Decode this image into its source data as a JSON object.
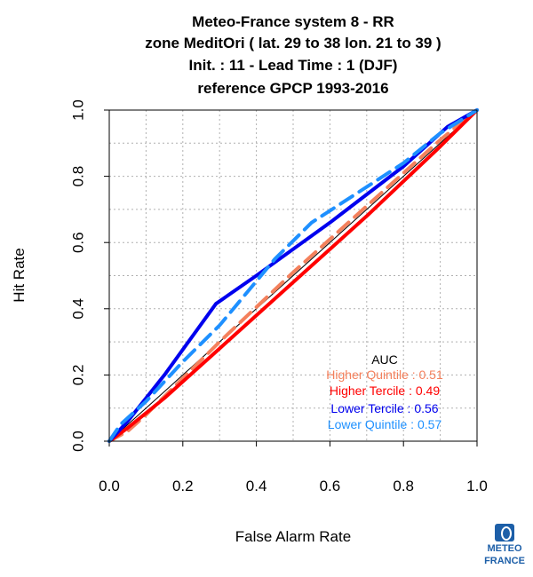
{
  "title_lines": [
    "Meteo-France system 8  -  RR",
    "zone MeditOri ( lat. 29 to 38    lon. 21 to 39 )",
    "Init. : 11  - Lead Time : 1 (DJF)",
    "reference GPCP 1993-2016"
  ],
  "chart_data": {
    "type": "line",
    "xlabel": "False Alarm Rate",
    "ylabel": "Hit Rate",
    "xlim": [
      0,
      1
    ],
    "ylim": [
      0,
      1
    ],
    "grid": true,
    "x_ticks": [
      "0.0",
      "0.2",
      "0.4",
      "0.6",
      "0.8",
      "1.0"
    ],
    "y_ticks": [
      "0.0",
      "0.2",
      "0.4",
      "0.6",
      "0.8",
      "1.0"
    ],
    "diagonal": [
      [
        0,
        0
      ],
      [
        1,
        1
      ]
    ],
    "legend_title": "AUC",
    "legend_position": "bottom-right",
    "series": [
      {
        "name": "Higher Quintile : 0.51",
        "color": "#f4805c",
        "dashed": true,
        "points": [
          [
            0,
            0
          ],
          [
            0.05,
            0.03
          ],
          [
            0.1,
            0.08
          ],
          [
            0.2,
            0.19
          ],
          [
            0.3,
            0.3
          ],
          [
            0.5,
            0.51
          ],
          [
            0.7,
            0.71
          ],
          [
            0.9,
            0.91
          ],
          [
            1,
            1
          ]
        ]
      },
      {
        "name": "Higher Tercile : 0.49",
        "color": "#ff0000",
        "dashed": false,
        "points": [
          [
            0,
            0
          ],
          [
            0.05,
            0.04
          ],
          [
            0.15,
            0.13
          ],
          [
            0.3,
            0.28
          ],
          [
            0.5,
            0.48
          ],
          [
            0.7,
            0.68
          ],
          [
            0.9,
            0.89
          ],
          [
            1,
            1
          ]
        ]
      },
      {
        "name": "Lower Tercile : 0.56",
        "color": "#0000ee",
        "dashed": false,
        "points": [
          [
            0,
            0
          ],
          [
            0.05,
            0.06
          ],
          [
            0.15,
            0.2
          ],
          [
            0.29,
            0.415
          ],
          [
            0.4,
            0.5
          ],
          [
            0.6,
            0.66
          ],
          [
            0.8,
            0.83
          ],
          [
            0.92,
            0.95
          ],
          [
            1,
            1
          ]
        ]
      },
      {
        "name": "Lower Quintile : 0.57",
        "color": "#1e90ff",
        "dashed": true,
        "points": [
          [
            0,
            0
          ],
          [
            0.03,
            0.05
          ],
          [
            0.1,
            0.12
          ],
          [
            0.2,
            0.24
          ],
          [
            0.3,
            0.35
          ],
          [
            0.45,
            0.55
          ],
          [
            0.55,
            0.66
          ],
          [
            0.8,
            0.84
          ],
          [
            0.9,
            0.93
          ],
          [
            1,
            1
          ]
        ]
      }
    ]
  },
  "logo": {
    "line1": "METEO",
    "line2": "FRANCE",
    "icon": "meteo-france-logo-icon"
  }
}
